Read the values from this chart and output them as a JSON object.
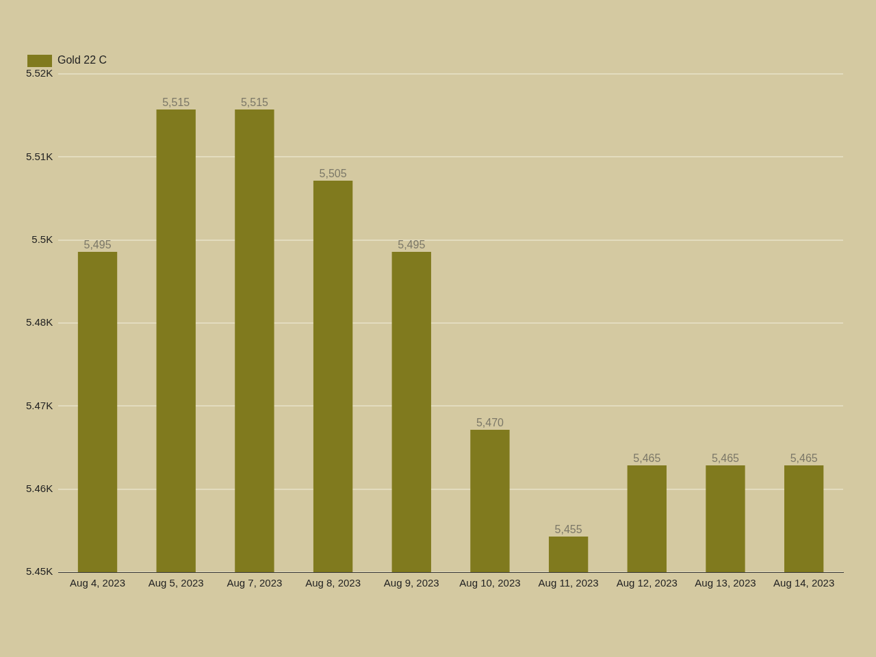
{
  "chart_data": {
    "type": "bar",
    "categories": [
      "Aug 4, 2023",
      "Aug 5, 2023",
      "Aug 7, 2023",
      "Aug 8, 2023",
      "Aug 9, 2023",
      "Aug 10, 2023",
      "Aug 11, 2023",
      "Aug 12, 2023",
      "Aug 13, 2023",
      "Aug 14, 2023"
    ],
    "series": [
      {
        "name": "Gold 22 C",
        "color": "#807a1e",
        "values": [
          5495,
          5515,
          5515,
          5505,
          5495,
          5470,
          5455,
          5465,
          5465,
          5465
        ]
      }
    ],
    "ylim": [
      5450,
      5520
    ],
    "yticks": [
      {
        "value": 5450,
        "label": "5.45K"
      },
      {
        "value": 5461.67,
        "label": "5.46K"
      },
      {
        "value": 5473.33,
        "label": "5.47K"
      },
      {
        "value": 5485,
        "label": "5.48K"
      },
      {
        "value": 5496.67,
        "label": "5.5K"
      },
      {
        "value": 5508.33,
        "label": "5.51K"
      },
      {
        "value": 5520,
        "label": "5.52K"
      }
    ],
    "value_labels": [
      "5,495",
      "5,515",
      "5,515",
      "5,505",
      "5,495",
      "5,470",
      "5,455",
      "5,465",
      "5,465",
      "5,465"
    ],
    "grid": "y",
    "legend": "top left"
  }
}
